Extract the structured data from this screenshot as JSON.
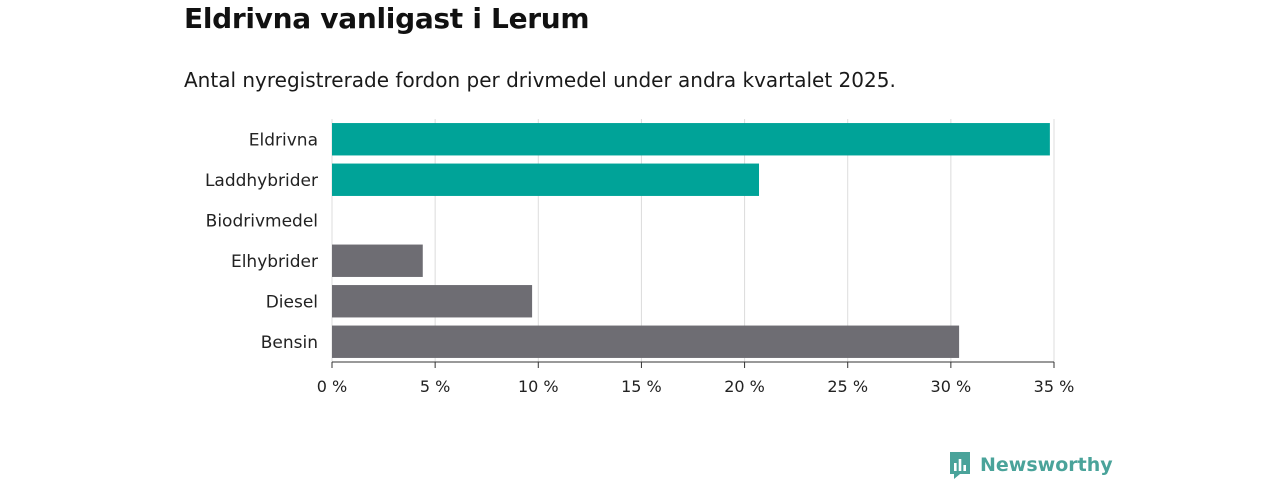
{
  "title": "Eldrivna vanligast i Lerum",
  "subtitle": "Antal nyregistrerade fordon per drivmedel under andra kvartalet 2025.",
  "brand": {
    "name": "Newsworthy",
    "color": "#4aa39a",
    "icon": "bar-chart-logo-icon"
  },
  "chart_data": {
    "type": "bar",
    "orientation": "horizontal",
    "categories": [
      "Eldrivna",
      "Laddhybrider",
      "Biodrivmedel",
      "Elhybrider",
      "Diesel",
      "Bensin"
    ],
    "values": [
      34.8,
      20.7,
      0,
      4.4,
      9.7,
      30.4
    ],
    "colors": [
      "#00a398",
      "#00a398",
      "#00a398",
      "#6e6d73",
      "#6e6d73",
      "#6e6d73"
    ],
    "xlim": [
      0,
      35
    ],
    "ticks": [
      0,
      5,
      10,
      15,
      20,
      25,
      30,
      35
    ],
    "tick_labels": [
      "0 %",
      "5 %",
      "10 %",
      "15 %",
      "20 %",
      "25 %",
      "30 %",
      "35 %"
    ],
    "grid": true
  }
}
